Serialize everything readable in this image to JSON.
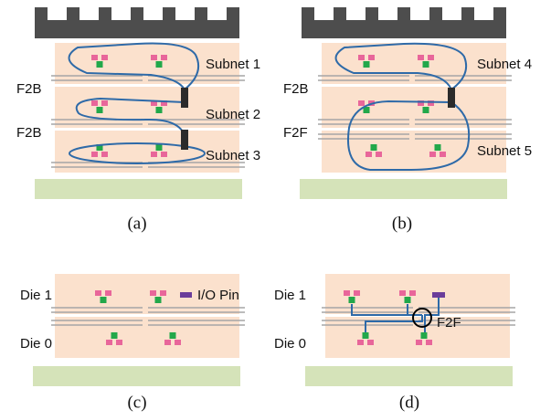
{
  "panels": [
    {
      "caption": "(a)",
      "bond_labels": [
        "F2B",
        "F2B"
      ],
      "subnets": [
        "Subnet 1",
        "Subnet 2",
        "Subnet 3"
      ]
    },
    {
      "caption": "(b)",
      "bond_labels": [
        "F2B",
        "F2F"
      ],
      "subnets": [
        "Subnet 4",
        "Subnet 5"
      ]
    },
    {
      "caption": "(c)",
      "dies": [
        "Die 1",
        "Die 0"
      ],
      "legend": "I/O Pin"
    },
    {
      "caption": "(d)",
      "dies": [
        "Die 1",
        "Die 0"
      ],
      "bond": "F2F"
    }
  ]
}
